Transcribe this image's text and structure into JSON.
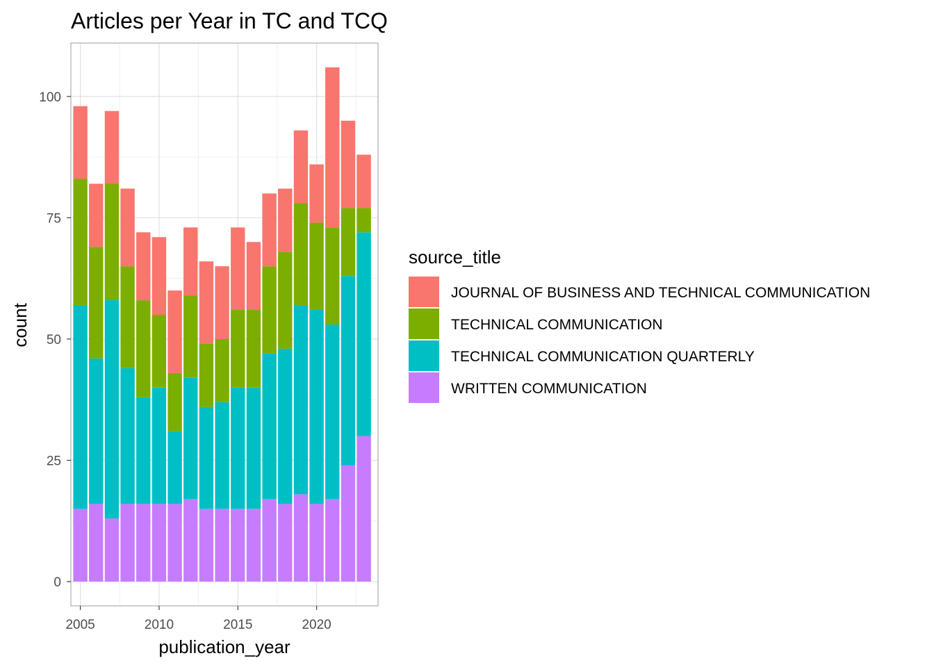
{
  "chart_data": {
    "type": "bar",
    "stacked": true,
    "title": "Articles per Year in TC and TCQ",
    "xlabel": "publication_year",
    "ylabel": "count",
    "x": [
      2005,
      2006,
      2007,
      2008,
      2009,
      2010,
      2011,
      2012,
      2013,
      2014,
      2015,
      2016,
      2017,
      2018,
      2019,
      2020,
      2021,
      2022,
      2023
    ],
    "xlim": [
      2004.4,
      2023.9
    ],
    "ylim": [
      -5,
      111
    ],
    "xticks": [
      2005,
      2010,
      2015,
      2020
    ],
    "yticks": [
      0,
      25,
      50,
      75,
      100
    ],
    "grid": true,
    "legend_title": "source_title",
    "legend_position": "right",
    "stack_order_bottom_to_top": [
      "WRITTEN COMMUNICATION",
      "TECHNICAL COMMUNICATION QUARTERLY",
      "TECHNICAL COMMUNICATION",
      "JOURNAL OF BUSINESS AND TECHNICAL COMMUNICATION"
    ],
    "series": [
      {
        "name": "JOURNAL OF BUSINESS AND TECHNICAL COMMUNICATION",
        "color": "#F8766D",
        "values": [
          15,
          13,
          15,
          16,
          14,
          16,
          17,
          14,
          17,
          15,
          17,
          14,
          15,
          13,
          15,
          12,
          33,
          18,
          11
        ]
      },
      {
        "name": "TECHNICAL COMMUNICATION",
        "color": "#7CAE00",
        "values": [
          26,
          23,
          24,
          21,
          20,
          15,
          12,
          17,
          13,
          13,
          16,
          16,
          18,
          20,
          21,
          18,
          20,
          14,
          5
        ]
      },
      {
        "name": "TECHNICAL COMMUNICATION QUARTERLY",
        "color": "#00BFC4",
        "values": [
          42,
          30,
          45,
          28,
          22,
          24,
          15,
          25,
          21,
          22,
          25,
          25,
          30,
          32,
          39,
          40,
          36,
          39,
          42
        ]
      },
      {
        "name": "WRITTEN COMMUNICATION",
        "color": "#C77CFF",
        "values": [
          15,
          16,
          13,
          16,
          16,
          16,
          16,
          17,
          15,
          15,
          15,
          15,
          17,
          16,
          18,
          16,
          17,
          24,
          30
        ]
      }
    ]
  }
}
